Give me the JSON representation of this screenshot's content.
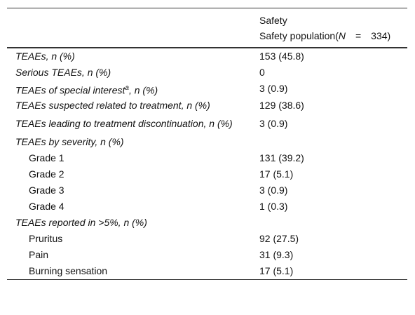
{
  "header": {
    "prefix": "Safety population(",
    "n_symbol": "N",
    "equals": "=",
    "count": "334)"
  },
  "rows": [
    {
      "label": "TEAEs, n (%)",
      "value": "153 (45.8)"
    },
    {
      "label": "Serious TEAEs, n (%)",
      "value": "0"
    },
    {
      "label": "TEAEs of special interest",
      "note": "a",
      "label_rest": ", n (%)",
      "value": "3 (0.9)"
    },
    {
      "label": "TEAEs suspected related to treatment, n (%)",
      "value": "129 (38.6)"
    },
    {
      "label": "TEAEs leading to treatment discontinuation, n (%)",
      "value": "3 (0.9)"
    },
    {
      "label": "TEAEs by severity, n (%)",
      "items": [
        {
          "label": "Grade 1",
          "value": "131 (39.2)"
        },
        {
          "label": "Grade 2",
          "value": "17 (5.1)"
        },
        {
          "label": "Grade 3",
          "value": "3 (0.9)"
        },
        {
          "label": "Grade 4",
          "value": "1 (0.3)"
        }
      ]
    },
    {
      "label": "TEAEs reported in >5%, n (%)",
      "items": [
        {
          "label": "Pruritus",
          "value": "92 (27.5)"
        },
        {
          "label": "Pain",
          "value": "31 (9.3)"
        },
        {
          "label": "Burning sensation",
          "value": "17 (5.1)"
        }
      ]
    }
  ]
}
